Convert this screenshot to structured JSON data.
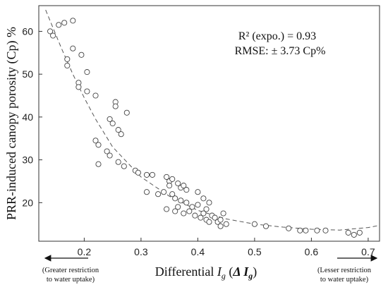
{
  "chart_data": {
    "type": "scatter",
    "xlabel": "Differential I_g (Δ I_g)",
    "ylabel": "PRR-induced canopy porosity (Cp) %",
    "xlim": [
      0.12,
      0.72
    ],
    "ylim": [
      11,
      66
    ],
    "x_ticks": [
      "0.2",
      "0.3",
      "0.4",
      "0.5",
      "0.6",
      "0.7"
    ],
    "y_ticks": [
      "20",
      "30",
      "40",
      "50",
      "60"
    ],
    "grid": false,
    "annotations": [
      "R² (expo.) = 0.93",
      "RMSE: ± 3.73 Cp%"
    ],
    "left_note": [
      "(Greater restriction",
      "to water uptake)"
    ],
    "right_note": [
      "(Lesser restriction",
      "to water uptake)"
    ],
    "fit": {
      "model": "exponential",
      "points": [
        [
          0.132,
          65
        ],
        [
          0.16,
          56
        ],
        [
          0.18,
          50
        ],
        [
          0.2,
          44.5
        ],
        [
          0.22,
          39.5
        ],
        [
          0.25,
          33
        ],
        [
          0.3,
          26
        ],
        [
          0.35,
          21.5
        ],
        [
          0.4,
          18.2
        ],
        [
          0.45,
          16.2
        ],
        [
          0.5,
          15
        ],
        [
          0.55,
          14.3
        ],
        [
          0.6,
          13.8
        ],
        [
          0.65,
          13.6
        ],
        [
          0.7,
          14.2
        ],
        [
          0.72,
          14.7
        ]
      ]
    },
    "points": [
      [
        0.14,
        60
      ],
      [
        0.145,
        59
      ],
      [
        0.155,
        61.5
      ],
      [
        0.165,
        62
      ],
      [
        0.17,
        52
      ],
      [
        0.17,
        53.5
      ],
      [
        0.18,
        62.5
      ],
      [
        0.18,
        56
      ],
      [
        0.19,
        48
      ],
      [
        0.19,
        47
      ],
      [
        0.195,
        54.5
      ],
      [
        0.205,
        50.5
      ],
      [
        0.205,
        46
      ],
      [
        0.22,
        45
      ],
      [
        0.22,
        34.5
      ],
      [
        0.225,
        33.5
      ],
      [
        0.225,
        29
      ],
      [
        0.24,
        32
      ],
      [
        0.245,
        31
      ],
      [
        0.245,
        39.5
      ],
      [
        0.25,
        38.5
      ],
      [
        0.255,
        43.5
      ],
      [
        0.255,
        42.5
      ],
      [
        0.26,
        37
      ],
      [
        0.26,
        29.5
      ],
      [
        0.265,
        36
      ],
      [
        0.27,
        28.5
      ],
      [
        0.275,
        41
      ],
      [
        0.29,
        27.5
      ],
      [
        0.295,
        27
      ],
      [
        0.31,
        26.5
      ],
      [
        0.31,
        22.5
      ],
      [
        0.32,
        26.5
      ],
      [
        0.33,
        22
      ],
      [
        0.34,
        22.5
      ],
      [
        0.345,
        26
      ],
      [
        0.345,
        18.5
      ],
      [
        0.35,
        25
      ],
      [
        0.35,
        24
      ],
      [
        0.355,
        25.5
      ],
      [
        0.355,
        22
      ],
      [
        0.36,
        21
      ],
      [
        0.36,
        18
      ],
      [
        0.365,
        24.5
      ],
      [
        0.365,
        19
      ],
      [
        0.37,
        23.5
      ],
      [
        0.37,
        20.5
      ],
      [
        0.375,
        24
      ],
      [
        0.375,
        17.5
      ],
      [
        0.38,
        23
      ],
      [
        0.38,
        20
      ],
      [
        0.385,
        18
      ],
      [
        0.39,
        19
      ],
      [
        0.395,
        17
      ],
      [
        0.4,
        22.5
      ],
      [
        0.4,
        19.5
      ],
      [
        0.405,
        16.5
      ],
      [
        0.41,
        21
      ],
      [
        0.41,
        17.5
      ],
      [
        0.415,
        18.5
      ],
      [
        0.415,
        16
      ],
      [
        0.42,
        20
      ],
      [
        0.42,
        15.5
      ],
      [
        0.425,
        17
      ],
      [
        0.43,
        16.5
      ],
      [
        0.435,
        15.5
      ],
      [
        0.44,
        16
      ],
      [
        0.44,
        14.5
      ],
      [
        0.445,
        17.5
      ],
      [
        0.45,
        15
      ],
      [
        0.5,
        15
      ],
      [
        0.52,
        14.5
      ],
      [
        0.56,
        14
      ],
      [
        0.58,
        13.5
      ],
      [
        0.59,
        13.5
      ],
      [
        0.61,
        13.5
      ],
      [
        0.625,
        13.5
      ],
      [
        0.665,
        13
      ],
      [
        0.675,
        12.5
      ],
      [
        0.685,
        13
      ]
    ]
  }
}
